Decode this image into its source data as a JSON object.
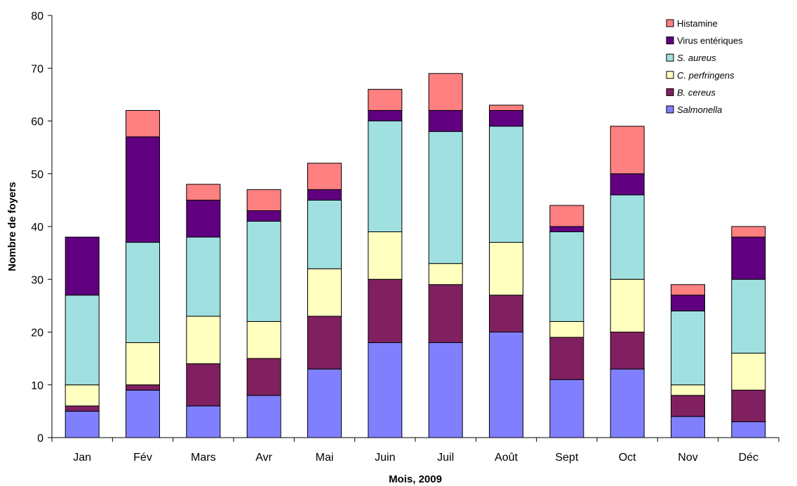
{
  "chart_data": {
    "type": "bar",
    "stacked": true,
    "categories": [
      "Jan",
      "Fév",
      "Mars",
      "Avr",
      "Mai",
      "Juin",
      "Juil",
      "Août",
      "Sept",
      "Oct",
      "Nov",
      "Déc"
    ],
    "series": [
      {
        "name": "Salmonella",
        "italic": true,
        "color": "#8080ff",
        "values": [
          5,
          9,
          6,
          8,
          13,
          18,
          18,
          20,
          11,
          13,
          4,
          3
        ]
      },
      {
        "name": "B. cereus",
        "italic": true,
        "color": "#802060",
        "values": [
          1,
          1,
          8,
          7,
          10,
          12,
          11,
          7,
          8,
          7,
          4,
          6
        ]
      },
      {
        "name": "C. perfringens",
        "italic": true,
        "color": "#ffffc0",
        "values": [
          4,
          8,
          9,
          7,
          9,
          9,
          4,
          10,
          3,
          10,
          2,
          7
        ]
      },
      {
        "name": "S. aureus",
        "italic": true,
        "color": "#a0e0e0",
        "values": [
          17,
          19,
          15,
          19,
          13,
          21,
          25,
          22,
          17,
          16,
          14,
          14
        ]
      },
      {
        "name": "Virus entériques",
        "italic": false,
        "color": "#600080",
        "values": [
          11,
          20,
          7,
          2,
          2,
          2,
          4,
          3,
          1,
          4,
          3,
          8
        ]
      },
      {
        "name": "Histamine",
        "italic": false,
        "color": "#ff8080",
        "values": [
          0,
          5,
          3,
          4,
          5,
          4,
          7,
          1,
          4,
          9,
          2,
          2
        ]
      }
    ],
    "xlabel": "Mois, 2009",
    "ylabel": "Nombre de foyers",
    "ylim": [
      0,
      80
    ],
    "yticks": [
      "0",
      "10",
      "20",
      "30",
      "40",
      "50",
      "60",
      "70",
      "80"
    ],
    "grid": false,
    "legend_position": "top-right"
  }
}
